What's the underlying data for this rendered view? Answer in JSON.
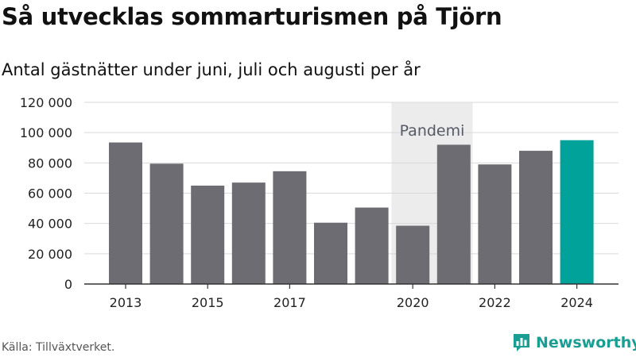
{
  "title": "Så utvecklas sommarturismen på Tjörn",
  "subtitle": "Antal gästnätter under juni, juli och augusti per år",
  "source": "Källa: Tillväxtverket.",
  "brand": {
    "name": "Newsworthy",
    "icon": "bar-chart-logo-icon",
    "color": "#1a9e93"
  },
  "colors": {
    "bar": "#6d6c72",
    "highlight": "#00a29a",
    "band": "#ececec",
    "grid": "#d9d9d9"
  },
  "chart_data": {
    "type": "bar",
    "x": [
      2013,
      2014,
      2015,
      2016,
      2017,
      2018,
      2019,
      2020,
      2021,
      2022,
      2023,
      2024
    ],
    "values": [
      93500,
      79500,
      65000,
      67000,
      74500,
      40500,
      50500,
      38500,
      92000,
      79000,
      88000,
      95000
    ],
    "highlight": [
      2024
    ],
    "xticks": [
      "2013",
      "2015",
      "2017",
      "2020",
      "2022",
      "2024"
    ],
    "yticks": [
      "0",
      "20 000",
      "40 000",
      "60 000",
      "80 000",
      "100 000",
      "120 000"
    ],
    "ylim": [
      0,
      120000
    ],
    "grid": true,
    "annotation": {
      "label": "Pandemi",
      "from": 2020,
      "to": 2021
    }
  }
}
